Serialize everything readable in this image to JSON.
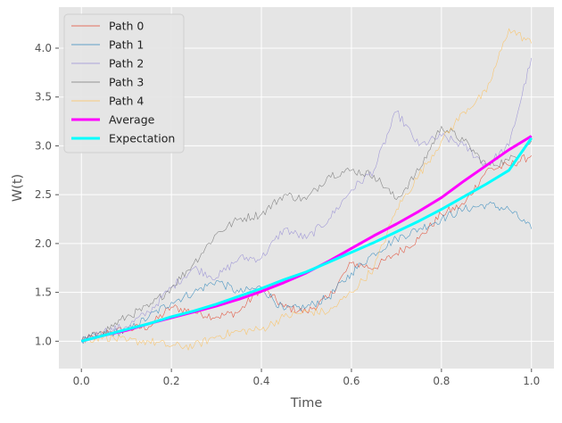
{
  "chart_data": {
    "type": "line",
    "xlabel": "Time",
    "ylabel": "W(t)",
    "xlim": [
      -0.05,
      1.05
    ],
    "ylim": [
      0.72,
      4.42
    ],
    "xticks": [
      0.0,
      0.2,
      0.4,
      0.6,
      0.8,
      1.0
    ],
    "xtick_labels": [
      "0.0",
      "0.2",
      "0.4",
      "0.6",
      "0.8",
      "1.0"
    ],
    "yticks": [
      1.0,
      1.5,
      2.0,
      2.5,
      3.0,
      3.5,
      4.0
    ],
    "ytick_labels": [
      "1.0",
      "1.5",
      "2.0",
      "2.5",
      "3.0",
      "3.5",
      "4.0"
    ],
    "grid": true,
    "legend_position": "top-left",
    "x": [
      0.0,
      0.05,
      0.1,
      0.15,
      0.2,
      0.25,
      0.3,
      0.35,
      0.4,
      0.45,
      0.5,
      0.55,
      0.6,
      0.65,
      0.7,
      0.75,
      0.8,
      0.85,
      0.9,
      0.95,
      1.0
    ],
    "series": [
      {
        "name": "Path 0",
        "color": "#e24a33",
        "linewidth": 0.6,
        "values": [
          1.0,
          1.08,
          1.12,
          1.15,
          1.35,
          1.3,
          1.25,
          1.3,
          1.55,
          1.35,
          1.3,
          1.45,
          1.8,
          1.75,
          1.9,
          2.05,
          2.3,
          2.4,
          2.75,
          2.8,
          2.9
        ]
      },
      {
        "name": "Path 1",
        "color": "#348abd",
        "linewidth": 0.6,
        "values": [
          1.0,
          1.08,
          1.1,
          1.25,
          1.4,
          1.5,
          1.62,
          1.5,
          1.55,
          1.32,
          1.35,
          1.45,
          1.7,
          1.9,
          2.05,
          2.15,
          2.25,
          2.35,
          2.4,
          2.35,
          2.15
        ]
      },
      {
        "name": "Path 2",
        "color": "#988ed5",
        "linewidth": 0.6,
        "values": [
          1.0,
          1.1,
          1.15,
          1.3,
          1.55,
          1.75,
          1.65,
          1.85,
          1.85,
          2.15,
          2.05,
          2.25,
          2.55,
          2.75,
          3.35,
          3.0,
          3.1,
          3.0,
          2.8,
          3.0,
          3.9
        ]
      },
      {
        "name": "Path 3",
        "color": "#777777",
        "linewidth": 0.6,
        "values": [
          1.0,
          1.1,
          1.25,
          1.35,
          1.55,
          1.8,
          2.1,
          2.25,
          2.3,
          2.5,
          2.45,
          2.7,
          2.75,
          2.7,
          2.45,
          2.75,
          3.2,
          3.05,
          2.8,
          2.85,
          3.05
        ]
      },
      {
        "name": "Path 4",
        "color": "#fbc15e",
        "linewidth": 0.6,
        "values": [
          1.0,
          1.05,
          1.0,
          1.0,
          0.95,
          0.95,
          1.05,
          1.1,
          1.12,
          1.25,
          1.3,
          1.3,
          1.5,
          1.75,
          2.35,
          2.7,
          3.05,
          3.35,
          3.55,
          4.2,
          4.05
        ]
      },
      {
        "name": "Average",
        "color": "#ff00ff",
        "linewidth": 3,
        "values": [
          1.0,
          1.06,
          1.11,
          1.18,
          1.24,
          1.3,
          1.36,
          1.43,
          1.51,
          1.6,
          1.7,
          1.82,
          1.95,
          2.08,
          2.2,
          2.33,
          2.47,
          2.64,
          2.8,
          2.96,
          3.1
        ]
      },
      {
        "name": "Expectation",
        "color": "#00ffff",
        "linewidth": 3,
        "values": [
          1.0,
          1.06,
          1.12,
          1.18,
          1.25,
          1.31,
          1.38,
          1.46,
          1.54,
          1.63,
          1.71,
          1.81,
          1.91,
          2.01,
          2.12,
          2.23,
          2.35,
          2.48,
          2.61,
          2.75,
          3.08
        ]
      }
    ]
  }
}
